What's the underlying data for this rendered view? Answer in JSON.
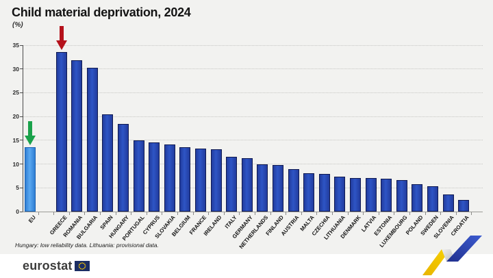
{
  "header": {
    "title": "Child material deprivation, 2024",
    "subtitle": "(%)"
  },
  "footnote": "Hungary: low reliability data. Lithuania: provisional data.",
  "logo": {
    "text": "eurostat",
    "flag_icon": "eu-flag-icon"
  },
  "colors": {
    "background": "#f2f2f0",
    "footer_background": "#ffffff",
    "eu_bar_fill": "#3f8fdf",
    "eu_bar_border": "#1a5fae",
    "country_bar_fill": "#2b4ab2",
    "country_bar_border": "#101a50",
    "red_arrow": "#b5121b",
    "green_arrow": "#1aa24b",
    "ribbon_yellow": "#f2c500",
    "ribbon_blue": "#2c3f9f"
  },
  "chart_data": {
    "type": "bar",
    "title": "Child material deprivation, 2024",
    "ylabel": "(%)",
    "xlabel": "",
    "ylim": [
      0,
      35
    ],
    "ytick_step": 5,
    "grid": "horizontal-dotted",
    "legend_position": "none",
    "separator_after": "EU",
    "categories": [
      "EU",
      "GREECE",
      "ROMANIA",
      "BULGARIA",
      "SPAIN",
      "HUNGARY",
      "PORTUGAL",
      "CYPRUS",
      "SLOVAKIA",
      "BELGIUM",
      "FRANCE",
      "IRELAND",
      "ITALY",
      "GERMANY",
      "NETHERLANDS",
      "FINLAND",
      "AUSTRIA",
      "MALTA",
      "CZECHIA",
      "LITHUANIA",
      "DENMARK",
      "LATVIA",
      "ESTONIA",
      "LUXEMBOURG",
      "POLAND",
      "SWEDEN",
      "SLOVENIA",
      "CROATIA"
    ],
    "values": [
      13.6,
      33.6,
      31.8,
      30.3,
      20.4,
      18.5,
      15.0,
      14.6,
      14.1,
      13.5,
      13.2,
      13.1,
      11.5,
      11.2,
      10.0,
      9.8,
      8.9,
      8.0,
      7.9,
      7.4,
      7.1,
      7.0,
      6.9,
      6.6,
      5.8,
      5.4,
      3.6,
      2.5
    ],
    "highlight_category": "EU",
    "annotations": [
      {
        "type": "down-arrow",
        "target": "GREECE",
        "color": "#b5121b",
        "meaning": "highest value"
      },
      {
        "type": "down-arrow",
        "target": "EU",
        "color": "#1aa24b",
        "meaning": "EU average"
      }
    ]
  }
}
